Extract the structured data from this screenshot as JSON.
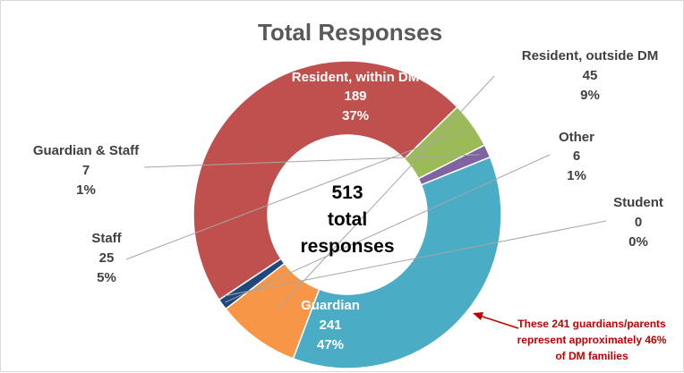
{
  "chart_data": {
    "type": "pie",
    "variant": "donut",
    "title": "Total Responses",
    "center_text": [
      "513",
      "total",
      "responses"
    ],
    "slices": [
      {
        "name": "Resident, within DM",
        "count": "189",
        "percent": "37%",
        "value": 189,
        "color": "#4bacc6",
        "label_color": "#ffffff"
      },
      {
        "name": "Resident, outside DM",
        "count": "45",
        "percent": "9%",
        "value": 45,
        "color": "#f79646",
        "label_color": "#404040"
      },
      {
        "name": "Other",
        "count": "6",
        "percent": "1%",
        "value": 6,
        "color": "#1f497d",
        "label_color": "#404040"
      },
      {
        "name": "Student",
        "count": "0",
        "percent": "0%",
        "value": 0,
        "color": "#7f7f7f",
        "label_color": "#404040"
      },
      {
        "name": "Guardian",
        "count": "241",
        "percent": "47%",
        "value": 241,
        "color": "#c0504d",
        "label_color": "#ffffff"
      },
      {
        "name": "Staff",
        "count": "25",
        "percent": "5%",
        "value": 25,
        "color": "#9bbb59",
        "label_color": "#404040"
      },
      {
        "name": "Guardian & Staff",
        "count": "7",
        "percent": "1%",
        "value": 7,
        "color": "#8064a2",
        "label_color": "#404040"
      }
    ],
    "annotation": {
      "lines": [
        "These 241 guardians/parents",
        "represent approximately 46%",
        "of DM families"
      ],
      "color": "#c00000"
    }
  }
}
